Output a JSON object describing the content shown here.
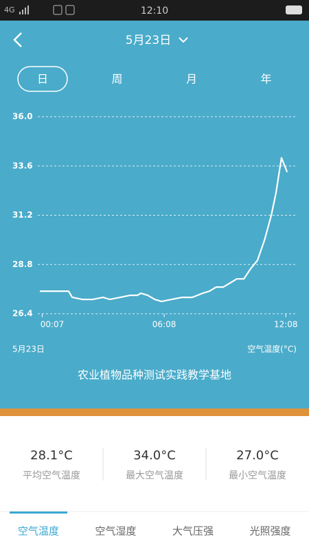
{
  "status_bar": {
    "network": "4G",
    "time": "12:10"
  },
  "header": {
    "date": "5月23日"
  },
  "period_tabs": [
    "日",
    "周",
    "月",
    "年"
  ],
  "selected_period_tab": 0,
  "chart_data": {
    "type": "line",
    "x": [
      0,
      85,
      96,
      126,
      157,
      187,
      207,
      238,
      268,
      289,
      299,
      319,
      340,
      360,
      390,
      421,
      451,
      482,
      502,
      522,
      543,
      563,
      583,
      604,
      624,
      644,
      665,
      685,
      699,
      715,
      732
    ],
    "values": [
      27.5,
      27.5,
      27.2,
      27.1,
      27.1,
      27.2,
      27.1,
      27.2,
      27.3,
      27.3,
      27.4,
      27.3,
      27.1,
      27.0,
      27.1,
      27.2,
      27.2,
      27.4,
      27.5,
      27.7,
      27.7,
      27.9,
      28.1,
      28.1,
      28.6,
      29.0,
      30.0,
      31.2,
      32.3,
      34.0,
      33.3
    ],
    "color": "#ffffff",
    "xlim": [
      0,
      760
    ],
    "xticks": [
      {
        "value": 7,
        "label": "00:07"
      },
      {
        "value": 368,
        "label": "06:08"
      },
      {
        "value": 728,
        "label": "12:08"
      }
    ],
    "ylim": [
      26.4,
      36.0
    ],
    "yticks": [
      {
        "value": 36.0,
        "label": "36.0"
      },
      33.6,
      31.2,
      28.8,
      26.4
    ],
    "grid": true,
    "date_label": "5月23日",
    "y_label": "空气温度(°C)",
    "title": "农业植物品种测试实践教学基地"
  },
  "stats": [
    {
      "value": "28.1°C",
      "label": "平均空气温度"
    },
    {
      "value": "34.0°C",
      "label": "最大空气温度"
    },
    {
      "value": "27.0°C",
      "label": "最小空气温度"
    }
  ],
  "sensor_tabs": [
    "空气温度",
    "空气湿度",
    "大气压强",
    "光照强度"
  ],
  "selected_sensor_tab": 0
}
